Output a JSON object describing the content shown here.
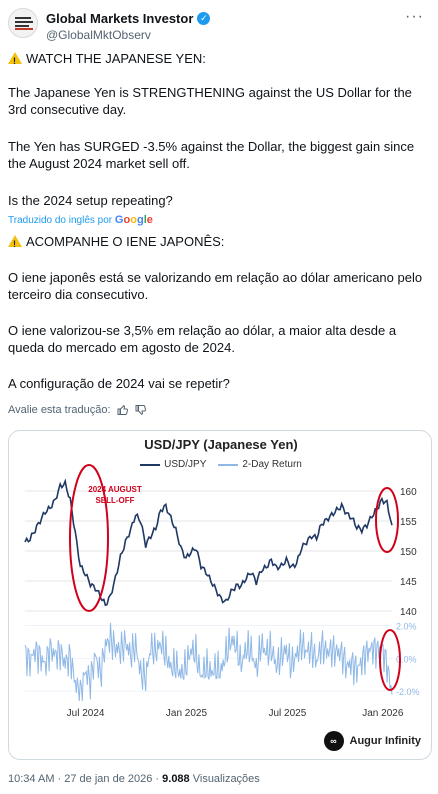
{
  "author": {
    "name": "Global Markets Investor",
    "handle": "@GlobalMktObserv",
    "avatar_text": [
      "GLOBAL",
      "MARKETS",
      "INVESTOR"
    ],
    "more_label": "···"
  },
  "tweet": {
    "original": [
      "WATCH THE JAPANESE YEN:",
      "The Japanese Yen is STRENGTHENING against the US Dollar for the 3rd consecutive day.",
      "The Yen has SURGED -3.5% against the Dollar, the biggest gain since the August 2024 market sell off.",
      "Is the 2024 setup repeating?"
    ],
    "translated_label": "Traduzido do inglês por",
    "google_label": [
      "G",
      "o",
      "o",
      "g",
      "l",
      "e"
    ],
    "translation": [
      "ACOMPANHE O IENE JAPONÊS:",
      "O iene japonês está se valorizando em relação ao dólar americano pelo terceiro dia consecutivo.",
      "O iene valorizou-se 3,5% em relação ao dólar, a maior alta desde a queda do mercado em agosto de 2024.",
      "A configuração de 2024 vai se repetir?"
    ],
    "rate_label": "Avalie esta tradução:"
  },
  "chart_data": {
    "type": "line",
    "title": "USD/JPY (Japanese Yen)",
    "legend": [
      "USD/JPY",
      "2-Day Return"
    ],
    "legend_position": "top-center",
    "colors": {
      "usdjpy": "#1f3864",
      "return": "#8fb8e6",
      "annotation": "#d0021b"
    },
    "x_tick_labels": [
      "Jul 2024",
      "Jan 2025",
      "Jul 2025",
      "Jan 2026"
    ],
    "price_axis": {
      "ticks": [
        "160",
        "155",
        "150",
        "145",
        "140"
      ],
      "ylim": [
        140,
        162
      ]
    },
    "return_axis": {
      "ticks": [
        "2.0%",
        "0.0%",
        "-2.0%"
      ],
      "ylim": [
        -2.6,
        2.4
      ]
    },
    "annotation": [
      "2024 AUGUST",
      "SELL-OFF"
    ],
    "series": [
      {
        "name": "USD/JPY",
        "values": [
          151.5,
          152.0,
          153.5,
          155.0,
          156.5,
          157.2,
          158.5,
          160.8,
          161.2,
          158.5,
          153.0,
          147.5,
          146.2,
          144.5,
          143.8,
          142.5,
          141.0,
          142.5,
          145.5,
          149.0,
          151.5,
          153.5,
          156.0,
          155.0,
          151.0,
          152.5,
          153.8,
          156.8,
          157.5,
          155.5,
          153.5,
          150.5,
          148.8,
          149.8,
          150.5,
          147.5,
          146.5,
          145.0,
          143.5,
          142.0,
          141.5,
          143.2,
          144.2,
          144.2,
          145.5,
          146.5,
          144.8,
          146.8,
          147.3,
          148.5,
          147.2,
          147.5,
          148.5,
          147.3,
          147.9,
          150.5,
          151.5,
          152.5,
          152.2,
          154.5,
          155.2,
          156.0,
          156.8,
          157.5,
          156.2,
          155.5,
          154.0,
          153.5,
          154.3,
          155.8,
          157.0,
          158.5,
          158.0,
          154.3
        ],
        "color": "#1f3864"
      },
      {
        "name": "2-Day Return",
        "values": [
          0.3,
          -0.2,
          0.5,
          0.1,
          -0.4,
          0.6,
          0.2,
          0.4,
          -0.3,
          0.1,
          -1.5,
          -2.2,
          -0.8,
          -1.4,
          0.2,
          -1.0,
          0.8,
          1.2,
          0.6,
          0.5,
          1.0,
          0.2,
          0.8,
          -0.9,
          -1.2,
          0.7,
          0.4,
          0.9,
          0.3,
          -0.6,
          -0.4,
          -1.0,
          -0.5,
          0.5,
          0.3,
          -1.1,
          -0.5,
          -0.9,
          -0.6,
          -0.8,
          0.3,
          1.1,
          0.8,
          -0.4,
          0.6,
          0.5,
          -0.7,
          0.9,
          0.3,
          0.6,
          -0.5,
          0.2,
          0.5,
          -0.4,
          0.2,
          0.9,
          0.4,
          0.6,
          -0.2,
          0.8,
          0.4,
          0.5,
          0.4,
          0.3,
          -0.5,
          -0.3,
          -0.7,
          -0.2,
          0.4,
          0.6,
          0.5,
          0.6,
          -0.4,
          -2.2
        ],
        "color": "#8fb8e6"
      }
    ]
  },
  "brand": {
    "name": "Augur Infinity",
    "icon": "∞"
  },
  "meta": {
    "time": "10:34 AM",
    "date": "27 de jan de 2026",
    "views_count": "9.088",
    "views_label": "Visualizações"
  }
}
